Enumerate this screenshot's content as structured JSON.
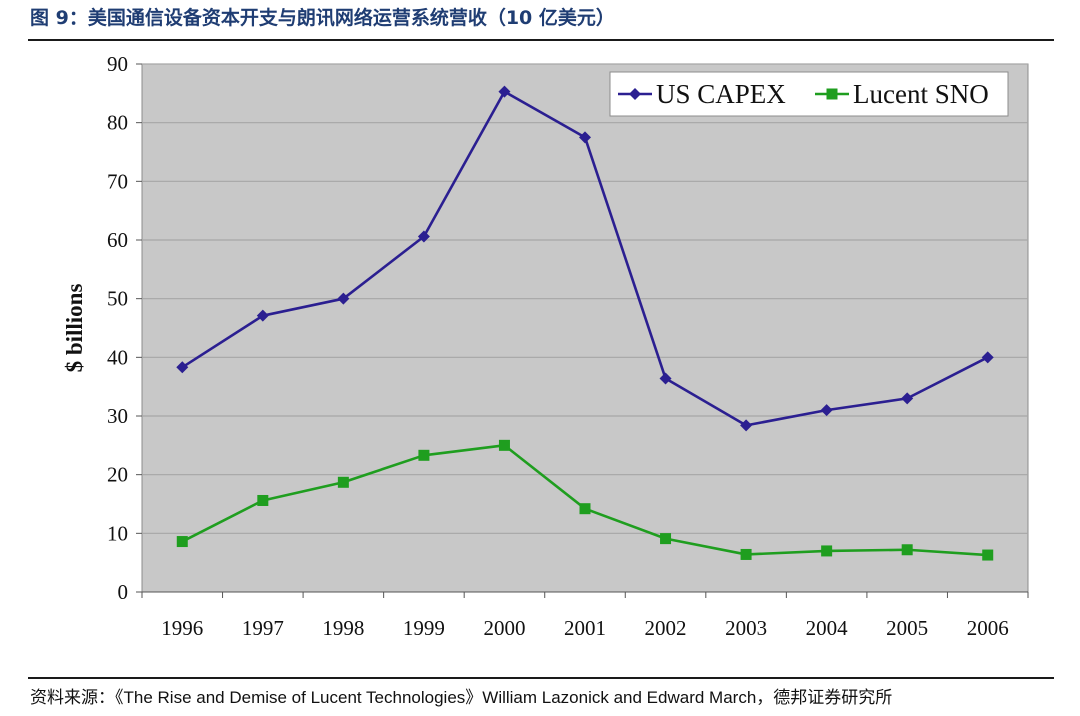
{
  "figure": {
    "title": "图 9：美国通信设备资本开支与朗讯网络运营系统营收（10 亿美元）",
    "source_prefix": "资料来源：",
    "source_text": "《The Rise and Demise of Lucent Technologies》William Lazonick and Edward March，",
    "source_suffix": "德邦证券研究所"
  },
  "chart_data": {
    "type": "line",
    "title": "",
    "xlabel": "",
    "ylabel": "$ billions",
    "x": [
      "1996",
      "1997",
      "1998",
      "1999",
      "2000",
      "2001",
      "2002",
      "2003",
      "2004",
      "2005",
      "2006"
    ],
    "ylim": [
      0,
      90
    ],
    "yticks": [
      0,
      10,
      20,
      30,
      40,
      50,
      60,
      70,
      80,
      90
    ],
    "grid": true,
    "legend_position": "top-right",
    "series": [
      {
        "name": "US CAPEX",
        "color": "#2b1f91",
        "marker": "diamond",
        "values": [
          38.3,
          47.1,
          50.0,
          60.6,
          85.3,
          77.5,
          36.4,
          28.4,
          31.0,
          33.0,
          40.0
        ]
      },
      {
        "name": "Lucent SNO",
        "color": "#1f9e1f",
        "marker": "square",
        "values": [
          8.6,
          15.6,
          18.7,
          23.3,
          25.0,
          14.2,
          9.1,
          6.4,
          7.0,
          7.2,
          6.3
        ]
      }
    ],
    "plot_background": "#c8c8c8",
    "grid_color": "#a6a6a6"
  }
}
